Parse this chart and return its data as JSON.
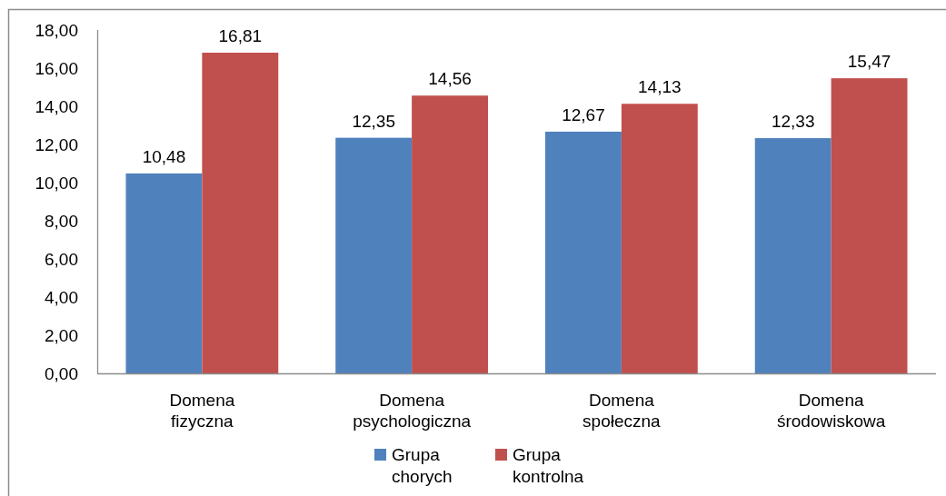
{
  "chart_data": {
    "type": "bar",
    "categories": [
      "Domena fizyczna",
      "Domena psychologiczna",
      "Domena społeczna",
      "Domena środowiskowa"
    ],
    "series": [
      {
        "name": "Grupa chorych",
        "color": "#4f81bd",
        "values": [
          10.48,
          12.35,
          12.67,
          12.33
        ],
        "value_labels": [
          "10,48",
          "12,35",
          "12,67",
          "12,33"
        ]
      },
      {
        "name": "Grupa kontrolna",
        "color": "#c0504d",
        "values": [
          16.81,
          14.56,
          14.13,
          15.47
        ],
        "value_labels": [
          "16,81",
          "14,56",
          "14,13",
          "15,47"
        ]
      }
    ],
    "ylim": [
      0,
      18
    ],
    "yticks": [
      {
        "value": 0,
        "label": "0,00"
      },
      {
        "value": 2,
        "label": "2,00"
      },
      {
        "value": 4,
        "label": "4,00"
      },
      {
        "value": 6,
        "label": "6,00"
      },
      {
        "value": 8,
        "label": "8,00"
      },
      {
        "value": 10,
        "label": "10,00"
      },
      {
        "value": 12,
        "label": "12,00"
      },
      {
        "value": 14,
        "label": "14,00"
      },
      {
        "value": 16,
        "label": "16,00"
      },
      {
        "value": 18,
        "label": "18,00"
      }
    ],
    "grid": false,
    "legend": "bottom"
  }
}
